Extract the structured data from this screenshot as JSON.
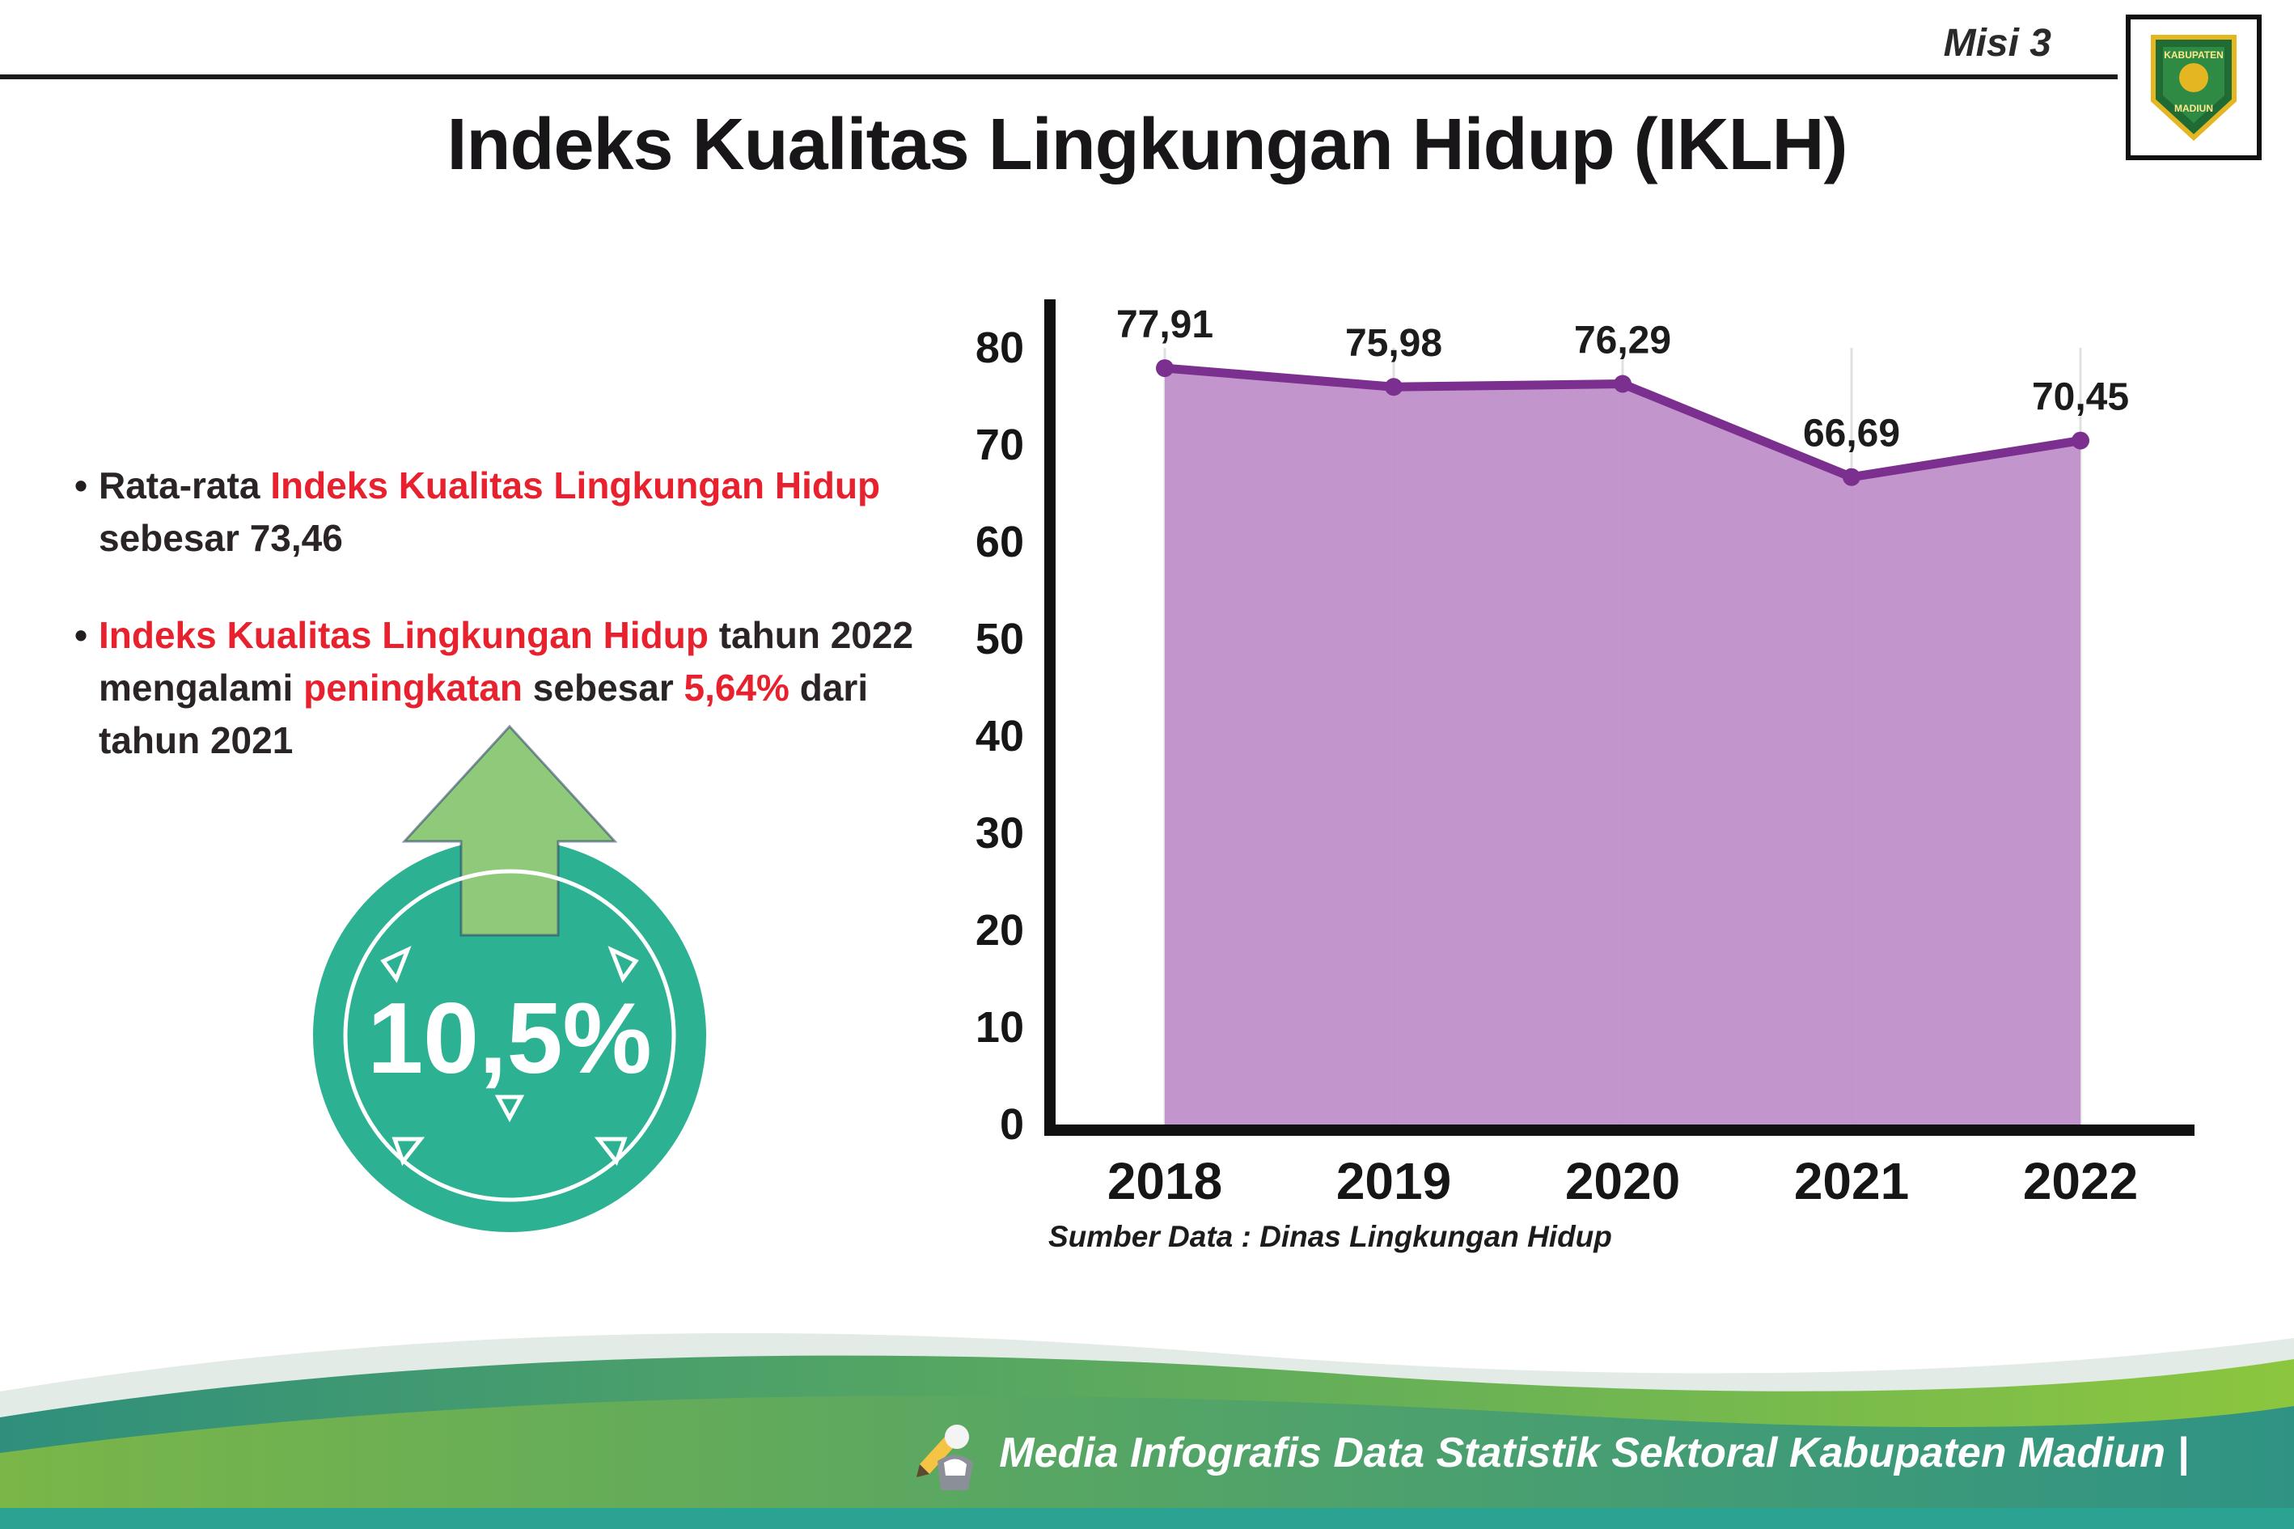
{
  "page": {
    "misi_label": "Misi 3",
    "title": "Indeks Kualitas Lingkungan Hidup (IKLH)"
  },
  "logo": {
    "top_text": "KABUPATEN",
    "bottom_text": "MADIUN"
  },
  "bullets": [
    {
      "segments": [
        {
          "text": "Rata-rata ",
          "color": "dark"
        },
        {
          "text": "Indeks Kualitas Lingkungan Hidup",
          "color": "red"
        },
        {
          "text": " sebesar 73,46",
          "color": "dark"
        }
      ]
    },
    {
      "segments": [
        {
          "text": "Indeks Kualitas Lingkungan Hidup",
          "color": "red"
        },
        {
          "text": " tahun 2022 mengalami ",
          "color": "dark"
        },
        {
          "text": "peningkatan",
          "color": "red"
        },
        {
          "text": " sebesar ",
          "color": "dark"
        },
        {
          "text": "5,64%",
          "color": "red"
        },
        {
          "text": " dari tahun 2021",
          "color": "dark"
        }
      ]
    }
  ],
  "badge": {
    "value": "10,5%",
    "direction": "up"
  },
  "chart_data": {
    "type": "area",
    "categories": [
      "2018",
      "2019",
      "2020",
      "2021",
      "2022"
    ],
    "values": [
      77.91,
      75.98,
      76.29,
      66.69,
      70.45
    ],
    "value_labels": [
      "77,91",
      "75,98",
      "76,29",
      "66,69",
      "70,45"
    ],
    "ylim": [
      0,
      80
    ],
    "yticks": [
      0,
      10,
      20,
      30,
      40,
      50,
      60,
      70,
      80
    ],
    "grid": "vertical-light",
    "legend": "none",
    "line_color": "#7b2f8e",
    "fill_color": "#c08fca",
    "source": "Sumber Data : Dinas Lingkungan Hidup"
  },
  "footer": {
    "credit": "Media Infografis Data Statistik Sektoral Kabupaten Madiun |"
  },
  "colors": {
    "accent_red": "#e8212e",
    "badge_teal": "#2cb192",
    "arrow_green": "#8fca7a",
    "ink": "#221e20"
  }
}
